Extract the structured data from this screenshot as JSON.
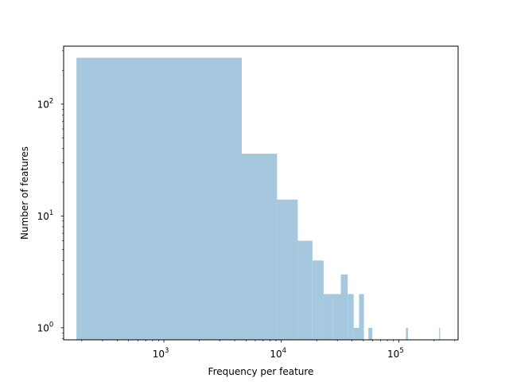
{
  "chart_data": {
    "type": "bar",
    "title": "",
    "xlabel": "Frequency per feature",
    "ylabel": "Number of features",
    "xscale": "log",
    "yscale": "log",
    "xlim": [
      140,
      320000
    ],
    "ylim": [
      0.78,
      330
    ],
    "grid": false,
    "legend": "none",
    "bar_color": "#a5c8df",
    "x_ticks": [
      {
        "value": 1000,
        "base": "10",
        "exp": "3"
      },
      {
        "value": 10000,
        "base": "10",
        "exp": "4"
      },
      {
        "value": 100000,
        "base": "10",
        "exp": "5"
      }
    ],
    "y_ticks": [
      {
        "value": 1,
        "base": "10",
        "exp": "0"
      },
      {
        "value": 10,
        "base": "10",
        "exp": "1"
      },
      {
        "value": 100,
        "base": "10",
        "exp": "2"
      }
    ],
    "bins": [
      {
        "x0": 180,
        "x1": 4600,
        "count": 260
      },
      {
        "x0": 4600,
        "x1": 9200,
        "count": 36
      },
      {
        "x0": 9200,
        "x1": 13800,
        "count": 14
      },
      {
        "x0": 13800,
        "x1": 18400,
        "count": 6
      },
      {
        "x0": 18400,
        "x1": 22900,
        "count": 4
      },
      {
        "x0": 22900,
        "x1": 27500,
        "count": 2
      },
      {
        "x0": 27500,
        "x1": 32100,
        "count": 2
      },
      {
        "x0": 32100,
        "x1": 36700,
        "count": 3
      },
      {
        "x0": 36700,
        "x1": 41300,
        "count": 2
      },
      {
        "x0": 41300,
        "x1": 45900,
        "count": 1
      },
      {
        "x0": 45900,
        "x1": 50500,
        "count": 2
      },
      {
        "x0": 55100,
        "x1": 59600,
        "count": 1
      },
      {
        "x0": 115000,
        "x1": 119700,
        "count": 1
      },
      {
        "x0": 220500,
        "x1": 225000,
        "count": 1
      }
    ]
  }
}
